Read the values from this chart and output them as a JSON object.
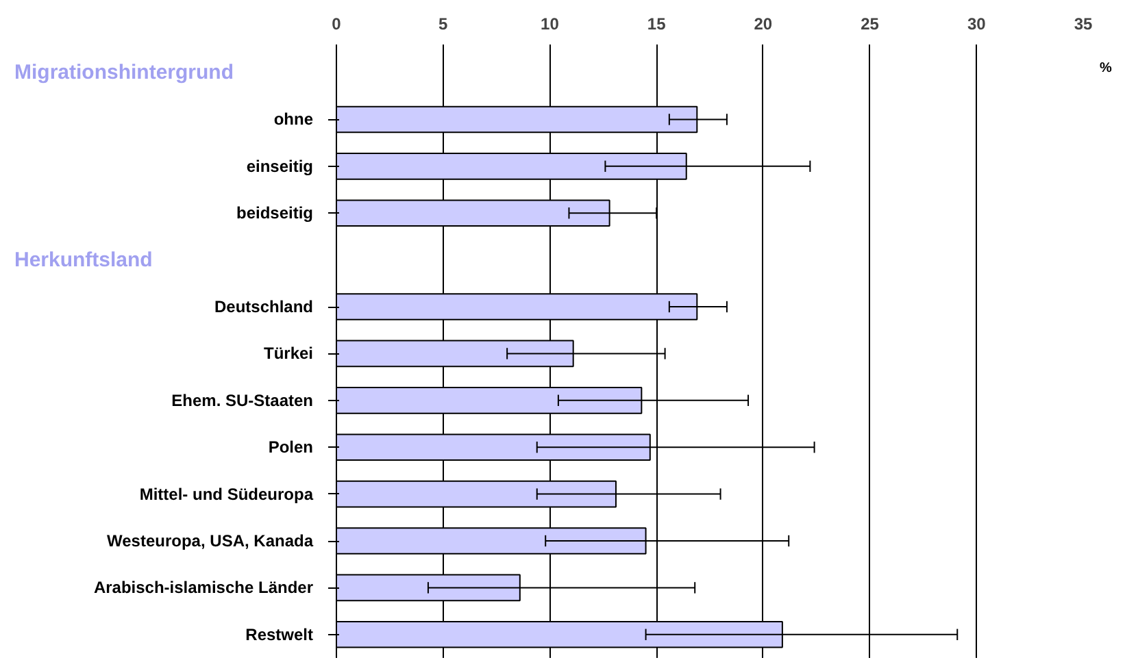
{
  "chart_data": {
    "type": "bar",
    "orientation": "horizontal",
    "xlabel": "%",
    "annotations": [
      "Migrationshintergrund",
      "Herkunftsland"
    ],
    "categories": [
      null,
      "ohne",
      "einseitig",
      "beidseitig",
      null,
      "Deutschland",
      "Türkei",
      "Ehem. SU-Staaten",
      "Polen",
      "Mittel- und Südeuropa",
      "Westeuropa, USA, Kanada",
      "Arabisch-islamische Länder",
      "Restwelt"
    ],
    "values": [
      null,
      16.9,
      16.4,
      12.8,
      null,
      16.9,
      11.1,
      14.3,
      14.7,
      13.1,
      14.5,
      8.6,
      20.9
    ],
    "errors": [
      null,
      [
        15.6,
        18.3
      ],
      [
        12.6,
        22.2
      ],
      [
        10.9,
        15.0
      ],
      null,
      [
        15.6,
        18.3
      ],
      [
        8.0,
        15.4
      ],
      [
        10.4,
        19.3
      ],
      [
        9.4,
        22.4
      ],
      [
        9.4,
        18.0
      ],
      [
        9.8,
        21.2
      ],
      [
        4.3,
        16.8
      ],
      [
        14.5,
        29.1
      ]
    ],
    "color": "#ccccff",
    "xlim": [
      0,
      35
    ],
    "xticks": [
      0,
      5,
      10,
      15,
      20,
      25,
      30,
      35
    ],
    "grid": "x"
  }
}
